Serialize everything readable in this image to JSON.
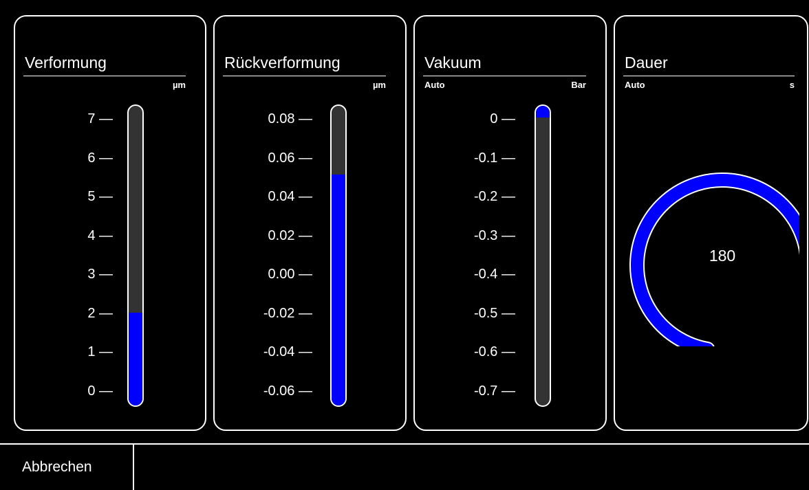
{
  "panels": [
    {
      "title": "Verformung",
      "unit": "µm",
      "mode": "",
      "ticks": [
        "7",
        "6",
        "5",
        "4",
        "3",
        "2",
        "1",
        "0"
      ],
      "fill_fraction": 0.31,
      "fill_from": "bottom"
    },
    {
      "title": "Rückverformung",
      "unit": "µm",
      "mode": "",
      "ticks": [
        "0.08",
        "0.06",
        "0.04",
        "0.02",
        "0.00",
        "-0.02",
        "-0.04",
        "-0.06"
      ],
      "fill_fraction": 0.77,
      "fill_from": "bottom"
    },
    {
      "title": "Vakuum",
      "unit": "Bar",
      "mode": "Auto",
      "ticks": [
        "0",
        "-0.1",
        "-0.2",
        "-0.3",
        "-0.4",
        "-0.5",
        "-0.6",
        "-0.7"
      ],
      "fill_fraction": 0.04,
      "fill_from": "top"
    }
  ],
  "dauer": {
    "title": "Dauer",
    "mode": "Auto",
    "unit": "s",
    "value": "180",
    "arc_fraction": 0.72
  },
  "footer": {
    "cancel_label": "Abbrechen"
  },
  "colors": {
    "fill": "#0000ff",
    "track": "#333333",
    "border": "#ffffff",
    "background": "#000000"
  }
}
